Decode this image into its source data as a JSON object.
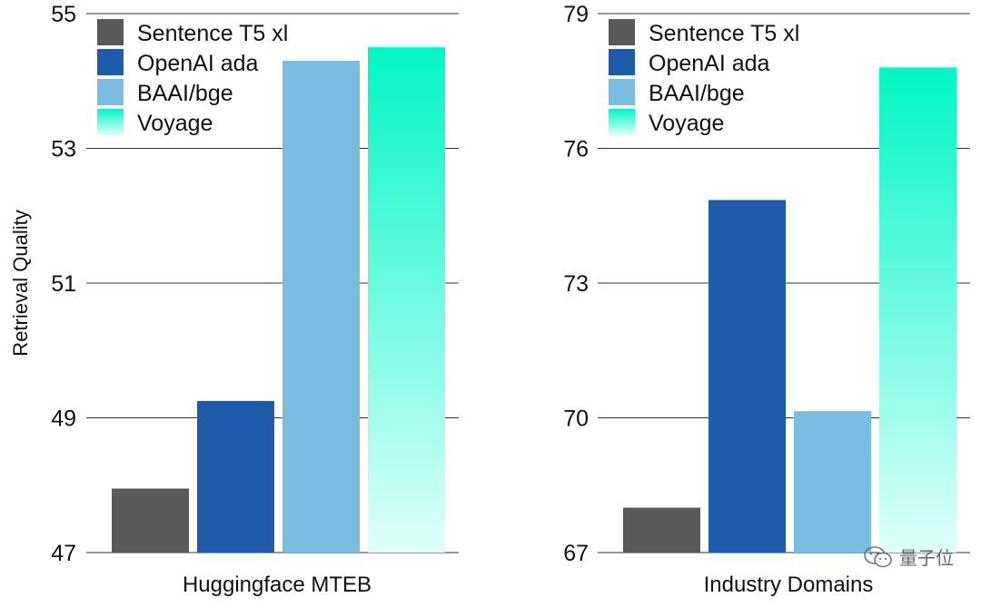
{
  "ylabel": "Retrieval Quality",
  "colors": {
    "Sentence T5 xl": "#595959",
    "OpenAI ada": "#1f5bab",
    "BAAI/bge": "#79bde0",
    "Voyage": "gradient:#00f5c4-#dffffa"
  },
  "chart_data": [
    {
      "type": "bar",
      "xlabel": "Huggingface MTEB",
      "ylabel": "Retrieval Quality",
      "ylim": [
        47,
        55
      ],
      "yticks": [
        "47",
        "49",
        "51",
        "53",
        "55"
      ],
      "grid": true,
      "legend_position": "top-left",
      "series": [
        {
          "name": "Sentence T5 xl",
          "value": 47.95
        },
        {
          "name": "OpenAI ada",
          "value": 49.25
        },
        {
          "name": "BAAI/bge",
          "value": 54.3
        },
        {
          "name": "Voyage",
          "value": 54.5
        }
      ]
    },
    {
      "type": "bar",
      "xlabel": "Industry Domains",
      "ylabel": "",
      "ylim": [
        67,
        79
      ],
      "yticks": [
        "67",
        "70",
        "73",
        "76",
        "79"
      ],
      "grid": true,
      "legend_position": "top-left",
      "series": [
        {
          "name": "Sentence T5 xl",
          "value": 68.0
        },
        {
          "name": "OpenAI ada",
          "value": 74.85
        },
        {
          "name": "BAAI/bge",
          "value": 70.15
        },
        {
          "name": "Voyage",
          "value": 77.8
        }
      ]
    }
  ],
  "watermark": {
    "text": "量子位",
    "icon": "wechat-icon"
  }
}
